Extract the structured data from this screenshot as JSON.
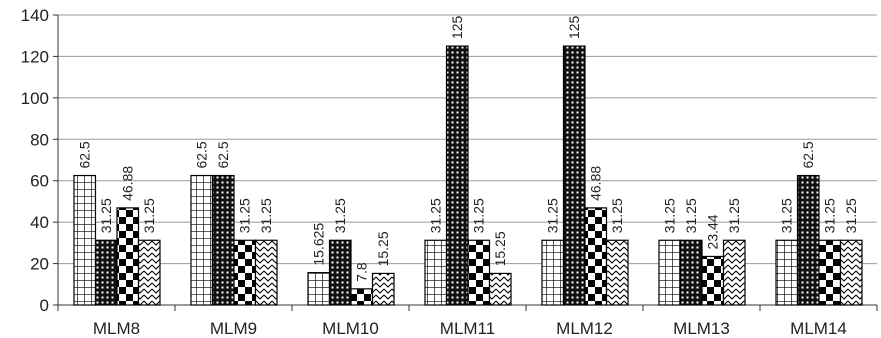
{
  "chart_data": {
    "type": "bar",
    "title": "",
    "xlabel": "",
    "ylabel": "",
    "ylim": [
      0,
      140
    ],
    "yticks": [
      0,
      20,
      40,
      60,
      80,
      100,
      120,
      140
    ],
    "grid": true,
    "legend": "none",
    "categories": [
      "MLM8",
      "MLM9",
      "MLM10",
      "MLM11",
      "MLM12",
      "MLM13",
      "MLM14"
    ],
    "series": [
      {
        "pattern": "grid",
        "values": [
          62.5,
          62.5,
          15.625,
          31.25,
          31.25,
          31.25,
          31.25
        ]
      },
      {
        "pattern": "dotted-dark",
        "values": [
          31.25,
          62.5,
          31.25,
          125,
          125,
          31.25,
          62.5
        ]
      },
      {
        "pattern": "checker",
        "values": [
          46.88,
          31.25,
          7.8,
          31.25,
          46.88,
          23.44,
          31.25
        ]
      },
      {
        "pattern": "zigzag",
        "values": [
          31.25,
          31.25,
          15.25,
          15.25,
          31.25,
          31.25,
          31.25
        ]
      }
    ],
    "data_labels": [
      [
        "62.5",
        "31.25",
        "46.88",
        "31.25"
      ],
      [
        "62.5",
        "62.5",
        "31.25",
        "31.25"
      ],
      [
        "15.625",
        "31.25",
        "7.8",
        "15.25"
      ],
      [
        "31.25",
        "125",
        "31.25",
        "15.25"
      ],
      [
        "31.25",
        "125",
        "46.88",
        "31.25"
      ],
      [
        "31.25",
        "31.25",
        "23.44",
        "31.25"
      ],
      [
        "31.25",
        "62.5",
        "31.25",
        "31.25"
      ]
    ]
  }
}
